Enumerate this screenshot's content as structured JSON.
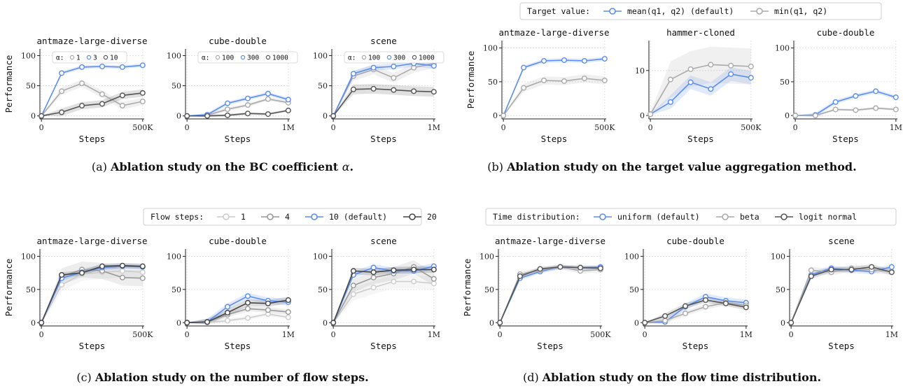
{
  "axis_defaults": {
    "ylabel": "Performance",
    "xlabel": "Steps"
  },
  "chart_data": [
    {
      "id": "a",
      "type": "line",
      "caption_label": "(a)",
      "caption_text": "Ablation study on the BC coefficient ",
      "caption_symbol": "α",
      "caption_end": ".",
      "legend": {
        "style": "inset",
        "prefix": "α:",
        "entries": [
          "1",
          "3",
          "10"
        ],
        "colors": [
          "#aaaaaa",
          "#5b8def",
          "#555555"
        ]
      },
      "panels": [
        {
          "title": "antmaze-large-diverse",
          "x": [
            0,
            100000,
            200000,
            300000,
            400000,
            500000
          ],
          "xticks": [
            0,
            500000
          ],
          "xticklabels": [
            "0",
            "500K"
          ],
          "xlim": [
            0,
            500000
          ],
          "ylim": [
            0,
            100
          ],
          "yticks": [
            0,
            50,
            100
          ],
          "series": [
            {
              "name": "1",
              "values": [
                0,
                41,
                54,
                36,
                17,
                24
              ],
              "band": 6
            },
            {
              "name": "3",
              "values": [
                0,
                71,
                81,
                82,
                81,
                84
              ],
              "band": 3
            },
            {
              "name": "10",
              "values": [
                0,
                6,
                17,
                20,
                34,
                38
              ],
              "band": 6
            }
          ]
        },
        {
          "title": "cube-double",
          "x": [
            0,
            200000,
            400000,
            600000,
            800000,
            1000000
          ],
          "xticks": [
            0,
            1000000
          ],
          "xticklabels": [
            "0",
            "1M"
          ],
          "xlim": [
            0,
            1000000
          ],
          "ylim": [
            0,
            100
          ],
          "yticks": [
            0,
            50,
            100
          ],
          "legend_labels": [
            "100",
            "300",
            "1000"
          ],
          "series": [
            {
              "name": "100",
              "values": [
                0,
                1,
                11,
                18,
                28,
                22
              ],
              "band": 3
            },
            {
              "name": "300",
              "values": [
                0,
                2,
                21,
                29,
                37,
                27
              ],
              "band": 3
            },
            {
              "name": "1000",
              "values": [
                0,
                0,
                1,
                4,
                3,
                9
              ],
              "band": 2
            }
          ]
        },
        {
          "title": "scene",
          "x": [
            0,
            200000,
            400000,
            600000,
            800000,
            1000000
          ],
          "xticks": [
            0,
            1000000
          ],
          "xticklabels": [
            "0",
            "1M"
          ],
          "xlim": [
            0,
            1000000
          ],
          "ylim": [
            0,
            100
          ],
          "yticks": [
            0,
            50,
            100
          ],
          "legend_labels": [
            "100",
            "300",
            "1000"
          ],
          "series": [
            {
              "name": "100",
              "values": [
                0,
                66,
                77,
                63,
                80,
                87
              ],
              "band": 8
            },
            {
              "name": "300",
              "values": [
                0,
                70,
                80,
                82,
                87,
                83
              ],
              "band": 5
            },
            {
              "name": "1000",
              "values": [
                0,
                44,
                45,
                43,
                41,
                40
              ],
              "band": 8
            }
          ]
        }
      ]
    },
    {
      "id": "b",
      "type": "line",
      "caption_label": "(b)",
      "caption_text": "Ablation study on the target value aggregation method.",
      "legend": {
        "style": "top",
        "prefix": "Target value:",
        "entries": [
          "mean(q1, q2) (default)",
          "min(q1, q2)"
        ],
        "colors": [
          "#5b8def",
          "#aaaaaa"
        ]
      },
      "panels": [
        {
          "title": "antmaze-large-diverse",
          "x": [
            0,
            100000,
            200000,
            300000,
            400000,
            500000
          ],
          "xticks": [
            0,
            500000
          ],
          "xticklabels": [
            "0",
            "500K"
          ],
          "xlim": [
            0,
            500000
          ],
          "ylim": [
            0,
            100
          ],
          "yticks": [
            0,
            50,
            100
          ],
          "series": [
            {
              "name": "mean(q1, q2) (default)",
              "values": [
                0,
                71,
                81,
                82,
                81,
                84
              ],
              "band": 3
            },
            {
              "name": "min(q1, q2)",
              "values": [
                0,
                41,
                52,
                51,
                55,
                52
              ],
              "band": 6
            }
          ]
        },
        {
          "title": "hammer-cloned",
          "x": [
            0,
            100000,
            200000,
            300000,
            400000,
            500000
          ],
          "xticks": [
            0,
            500000
          ],
          "xticklabels": [
            "0",
            "500K"
          ],
          "xlim": [
            0,
            500000
          ],
          "ylim": [
            0,
            15
          ],
          "yticks": [
            0,
            10
          ],
          "series": [
            {
              "name": "mean(q1, q2) (default)",
              "values": [
                0.3,
                3,
                7.4,
                5.9,
                9.2,
                8.4
              ],
              "band": 1.5
            },
            {
              "name": "min(q1, q2)",
              "values": [
                0.3,
                8,
                10.3,
                11.3,
                11.1,
                10.9
              ],
              "band": 4
            }
          ]
        },
        {
          "title": "cube-double",
          "x": [
            0,
            200000,
            400000,
            600000,
            800000,
            1000000
          ],
          "xticks": [
            0,
            1000000
          ],
          "xticklabels": [
            "0",
            "1M"
          ],
          "xlim": [
            0,
            1000000
          ],
          "ylim": [
            0,
            100
          ],
          "yticks": [
            0,
            50,
            100
          ],
          "series": [
            {
              "name": "mean(q1, q2) (default)",
              "values": [
                0,
                1,
                20,
                29,
                36,
                27
              ],
              "band": 3
            },
            {
              "name": "min(q1, q2)",
              "values": [
                0,
                0,
                9,
                8,
                11,
                9
              ],
              "band": 2
            }
          ]
        }
      ]
    },
    {
      "id": "c",
      "type": "line",
      "caption_label": "(c)",
      "caption_text": "Ablation study on the number of flow steps.",
      "legend": {
        "style": "top",
        "prefix": "Flow steps:",
        "entries": [
          "1",
          "4",
          "10 (default)",
          "20"
        ],
        "colors": [
          "#cccccc",
          "#999999",
          "#5b8def",
          "#444444"
        ]
      },
      "panels": [
        {
          "title": "antmaze-large-diverse",
          "x": [
            0,
            100000,
            200000,
            300000,
            400000,
            500000
          ],
          "xticks": [
            0,
            500000
          ],
          "xticklabels": [
            "0",
            "500K"
          ],
          "xlim": [
            0,
            500000
          ],
          "ylim": [
            0,
            100
          ],
          "yticks": [
            0,
            50,
            100
          ],
          "series": [
            {
              "name": "1",
              "values": [
                0,
                57,
                73,
                76,
                78,
                76
              ],
              "band": 10
            },
            {
              "name": "4",
              "values": [
                0,
                70,
                80,
                78,
                68,
                67
              ],
              "band": 12
            },
            {
              "name": "10 (default)",
              "values": [
                0,
                67,
                76,
                83,
                85,
                84
              ],
              "band": 4
            },
            {
              "name": "20",
              "values": [
                0,
                72,
                75,
                85,
                86,
                85
              ],
              "band": 4
            }
          ]
        },
        {
          "title": "cube-double",
          "x": [
            0,
            200000,
            400000,
            600000,
            800000,
            1000000
          ],
          "xticks": [
            0,
            1000000
          ],
          "xticklabels": [
            "0",
            "1M"
          ],
          "xlim": [
            0,
            1000000
          ],
          "ylim": [
            0,
            100
          ],
          "yticks": [
            0,
            50,
            100
          ],
          "series": [
            {
              "name": "1",
              "values": [
                0,
                0,
                3,
                7,
                13,
                8
              ],
              "band": 3
            },
            {
              "name": "4",
              "values": [
                0,
                1,
                12,
                21,
                19,
                16
              ],
              "band": 4
            },
            {
              "name": "10 (default)",
              "values": [
                0,
                1,
                24,
                40,
                33,
                31
              ],
              "band": 5
            },
            {
              "name": "20",
              "values": [
                0,
                1,
                15,
                30,
                29,
                34
              ],
              "band": 5
            }
          ]
        },
        {
          "title": "scene",
          "x": [
            0,
            200000,
            400000,
            600000,
            800000,
            1000000
          ],
          "xticks": [
            0,
            1000000
          ],
          "xticklabels": [
            "0",
            "1M"
          ],
          "xlim": [
            0,
            1000000
          ],
          "ylim": [
            0,
            100
          ],
          "yticks": [
            0,
            50,
            100
          ],
          "series": [
            {
              "name": "1",
              "values": [
                0,
                43,
                53,
                62,
                62,
                59
              ],
              "band": 10
            },
            {
              "name": "4",
              "values": [
                0,
                56,
                68,
                74,
                84,
                66
              ],
              "band": 10
            },
            {
              "name": "10 (default)",
              "values": [
                0,
                72,
                83,
                78,
                78,
                85
              ],
              "band": 5
            },
            {
              "name": "20",
              "values": [
                0,
                78,
                76,
                79,
                80,
                80
              ],
              "band": 5
            }
          ]
        }
      ]
    },
    {
      "id": "d",
      "type": "line",
      "caption_label": "(d)",
      "caption_text": "Ablation study on the flow time distribution.",
      "legend": {
        "style": "top",
        "prefix": "Time distribution:",
        "entries": [
          "uniform (default)",
          "beta",
          "logit normal"
        ],
        "colors": [
          "#5b8def",
          "#aaaaaa",
          "#555555"
        ]
      },
      "panels": [
        {
          "title": "antmaze-large-diverse",
          "x": [
            0,
            100000,
            200000,
            300000,
            400000,
            500000
          ],
          "xticks": [
            0,
            500000
          ],
          "xticklabels": [
            "0",
            "500K"
          ],
          "xlim": [
            0,
            500000
          ],
          "ylim": [
            0,
            100
          ],
          "yticks": [
            0,
            50,
            100
          ],
          "series": [
            {
              "name": "uniform (default)",
              "values": [
                0,
                67,
                77,
                84,
                83,
                84
              ],
              "band": 3
            },
            {
              "name": "beta",
              "values": [
                0,
                73,
                79,
                84,
                78,
                80
              ],
              "band": 4
            },
            {
              "name": "logit normal",
              "values": [
                0,
                70,
                81,
                84,
                83,
                82
              ],
              "band": 3
            }
          ]
        },
        {
          "title": "cube-double",
          "x": [
            0,
            200000,
            400000,
            600000,
            800000,
            1000000
          ],
          "xticks": [
            0,
            1000000
          ],
          "xticklabels": [
            "0",
            "1M"
          ],
          "xlim": [
            0,
            1000000
          ],
          "ylim": [
            0,
            100
          ],
          "yticks": [
            0,
            50,
            100
          ],
          "series": [
            {
              "name": "uniform (default)",
              "values": [
                0,
                1,
                24,
                39,
                33,
                30
              ],
              "band": 5
            },
            {
              "name": "beta",
              "values": [
                0,
                3,
                14,
                24,
                30,
                26
              ],
              "band": 4
            },
            {
              "name": "logit normal",
              "values": [
                0,
                10,
                25,
                34,
                29,
                23
              ],
              "band": 4
            }
          ]
        },
        {
          "title": "scene",
          "x": [
            0,
            200000,
            400000,
            600000,
            800000,
            1000000
          ],
          "xticks": [
            0,
            1000000
          ],
          "xticklabels": [
            "0",
            "1M"
          ],
          "xlim": [
            0,
            1000000
          ],
          "ylim": [
            0,
            100
          ],
          "yticks": [
            0,
            50,
            100
          ],
          "series": [
            {
              "name": "uniform (default)",
              "values": [
                0,
                72,
                82,
                79,
                77,
                84
              ],
              "band": 4
            },
            {
              "name": "beta",
              "values": [
                0,
                79,
                76,
                82,
                80,
                77
              ],
              "band": 5
            },
            {
              "name": "logit normal",
              "values": [
                0,
                70,
                80,
                80,
                84,
                76
              ],
              "band": 4
            }
          ]
        }
      ]
    }
  ]
}
